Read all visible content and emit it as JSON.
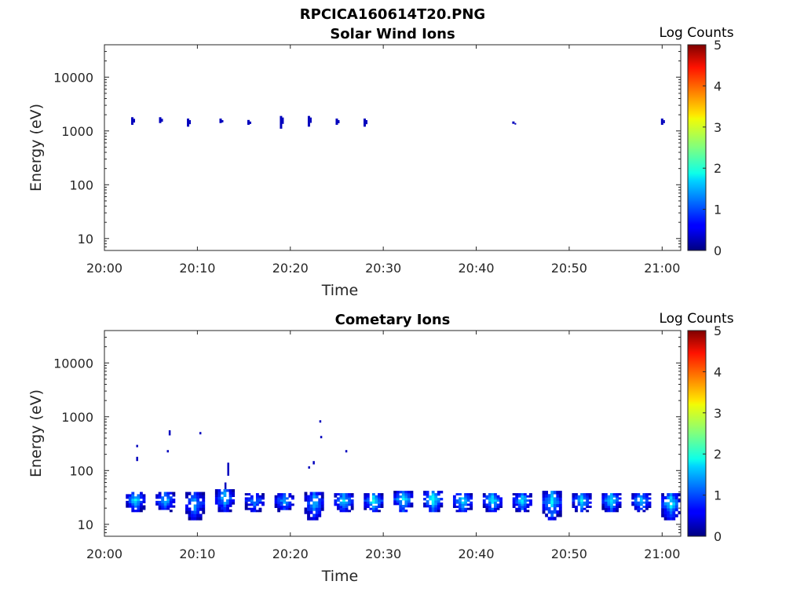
{
  "figure_title": "RPCICA160614T20.PNG",
  "chart_data": [
    {
      "type": "heatmap",
      "title": "Solar Wind Ions",
      "xlabel": "Time",
      "ylabel": "Energy (eV)",
      "x_ticks": [
        "20:00",
        "20:10",
        "20:20",
        "20:30",
        "20:40",
        "20:50",
        "21:00"
      ],
      "x_range": [
        "20:00",
        "21:02"
      ],
      "y_scale": "log",
      "y_ticks": [
        "10",
        "100",
        "1000",
        "10000"
      ],
      "y_range": [
        6,
        40000
      ],
      "colorbar": {
        "label": "Log Counts",
        "range": [
          0,
          5
        ],
        "ticks": [
          "0",
          "1",
          "2",
          "3",
          "4",
          "5"
        ],
        "colormap": "jet"
      },
      "features": [
        {
          "time": "20:03",
          "energy_range_eV": [
            1300,
            1800
          ],
          "log_counts": 0.3
        },
        {
          "time": "20:06",
          "energy_range_eV": [
            1400,
            1800
          ],
          "log_counts": 0.3
        },
        {
          "time": "20:09",
          "energy_range_eV": [
            1200,
            1700
          ],
          "log_counts": 0.3
        },
        {
          "time": "20:12.5",
          "energy_range_eV": [
            1400,
            1700
          ],
          "log_counts": 0.3
        },
        {
          "time": "20:15.5",
          "energy_range_eV": [
            1300,
            1600
          ],
          "log_counts": 0.3
        },
        {
          "time": "20:19",
          "energy_range_eV": [
            1100,
            1900
          ],
          "log_counts": 0.3
        },
        {
          "time": "20:22",
          "energy_range_eV": [
            1200,
            1900
          ],
          "log_counts": 0.3
        },
        {
          "time": "20:25",
          "energy_range_eV": [
            1300,
            1700
          ],
          "log_counts": 0.3
        },
        {
          "time": "20:28",
          "energy_range_eV": [
            1200,
            1700
          ],
          "log_counts": 0.3
        },
        {
          "time": "20:44",
          "energy_range_eV": [
            1400,
            1500
          ],
          "log_counts": 0.3
        },
        {
          "time": "21:00",
          "energy_range_eV": [
            1300,
            1700
          ],
          "log_counts": 0.3
        }
      ]
    },
    {
      "type": "heatmap",
      "title": "Cometary Ions",
      "xlabel": "Time",
      "ylabel": "Energy (eV)",
      "x_ticks": [
        "20:00",
        "20:10",
        "20:20",
        "20:30",
        "20:40",
        "20:50",
        "21:00"
      ],
      "x_range": [
        "20:00",
        "21:02"
      ],
      "y_scale": "log",
      "y_ticks": [
        "10",
        "100",
        "1000",
        "10000"
      ],
      "y_range": [
        6,
        40000
      ],
      "colorbar": {
        "label": "Log Counts",
        "range": [
          0,
          5
        ],
        "ticks": [
          "0",
          "1",
          "2",
          "3",
          "4",
          "5"
        ],
        "colormap": "jet"
      },
      "bursts": [
        {
          "time": "20:03.2",
          "energy_range_eV": [
            17,
            40
          ],
          "peak_log_counts": 1.8
        },
        {
          "time": "20:06.4",
          "energy_range_eV": [
            17,
            40
          ],
          "peak_log_counts": 1.6
        },
        {
          "time": "20:09.6",
          "energy_range_eV": [
            12,
            40
          ],
          "peak_log_counts": 1.5
        },
        {
          "time": "20:12.8",
          "energy_range_eV": [
            17,
            45
          ],
          "peak_log_counts": 1.7
        },
        {
          "time": "20:16",
          "energy_range_eV": [
            17,
            38
          ],
          "peak_log_counts": 1.4
        },
        {
          "time": "20:19.2",
          "energy_range_eV": [
            17,
            38
          ],
          "peak_log_counts": 1.5
        },
        {
          "time": "20:22.4",
          "energy_range_eV": [
            12,
            40
          ],
          "peak_log_counts": 1.6
        },
        {
          "time": "20:25.6",
          "energy_range_eV": [
            17,
            38
          ],
          "peak_log_counts": 1.8
        },
        {
          "time": "20:28.8",
          "energy_range_eV": [
            17,
            38
          ],
          "peak_log_counts": 2.0
        },
        {
          "time": "20:32",
          "energy_range_eV": [
            17,
            42
          ],
          "peak_log_counts": 1.9
        },
        {
          "time": "20:35.2",
          "energy_range_eV": [
            17,
            42
          ],
          "peak_log_counts": 2.1
        },
        {
          "time": "20:38.4",
          "energy_range_eV": [
            17,
            38
          ],
          "peak_log_counts": 1.9
        },
        {
          "time": "20:41.6",
          "energy_range_eV": [
            17,
            38
          ],
          "peak_log_counts": 1.9
        },
        {
          "time": "20:44.8",
          "energy_range_eV": [
            17,
            38
          ],
          "peak_log_counts": 1.8
        },
        {
          "time": "20:48",
          "energy_range_eV": [
            12,
            42
          ],
          "peak_log_counts": 1.8
        },
        {
          "time": "20:51.2",
          "energy_range_eV": [
            17,
            38
          ],
          "peak_log_counts": 1.8
        },
        {
          "time": "20:54.4",
          "energy_range_eV": [
            17,
            38
          ],
          "peak_log_counts": 1.9
        },
        {
          "time": "20:57.6",
          "energy_range_eV": [
            17,
            38
          ],
          "peak_log_counts": 1.7
        },
        {
          "time": "21:00.8",
          "energy_range_eV": [
            12,
            38
          ],
          "peak_log_counts": 1.9
        }
      ],
      "sparse_points": [
        {
          "time": "20:03.5",
          "energy_range_eV": [
            150,
            180
          ],
          "log_counts": 0.3
        },
        {
          "time": "20:03.5",
          "energy_range_eV": [
            280,
            300
          ],
          "log_counts": 0.3
        },
        {
          "time": "20:06.8",
          "energy_range_eV": [
            220,
            240
          ],
          "log_counts": 0.3
        },
        {
          "time": "20:07",
          "energy_range_eV": [
            450,
            560
          ],
          "log_counts": 0.3
        },
        {
          "time": "20:10.3",
          "energy_range_eV": [
            480,
            520
          ],
          "log_counts": 0.3
        },
        {
          "time": "20:13.3",
          "energy_range_eV": [
            80,
            140
          ],
          "log_counts": 0.3
        },
        {
          "time": "20:13",
          "energy_range_eV": [
            45,
            60
          ],
          "log_counts": 0.3
        },
        {
          "time": "20:22",
          "energy_range_eV": [
            110,
            120
          ],
          "log_counts": 0.3
        },
        {
          "time": "20:22.5",
          "energy_range_eV": [
            130,
            150
          ],
          "log_counts": 0.3
        },
        {
          "time": "20:23.3",
          "energy_range_eV": [
            400,
            440
          ],
          "log_counts": 0.3
        },
        {
          "time": "20:23.2",
          "energy_range_eV": [
            800,
            860
          ],
          "log_counts": 0.3
        },
        {
          "time": "20:26",
          "energy_range_eV": [
            220,
            240
          ],
          "log_counts": 0.3
        }
      ]
    }
  ]
}
